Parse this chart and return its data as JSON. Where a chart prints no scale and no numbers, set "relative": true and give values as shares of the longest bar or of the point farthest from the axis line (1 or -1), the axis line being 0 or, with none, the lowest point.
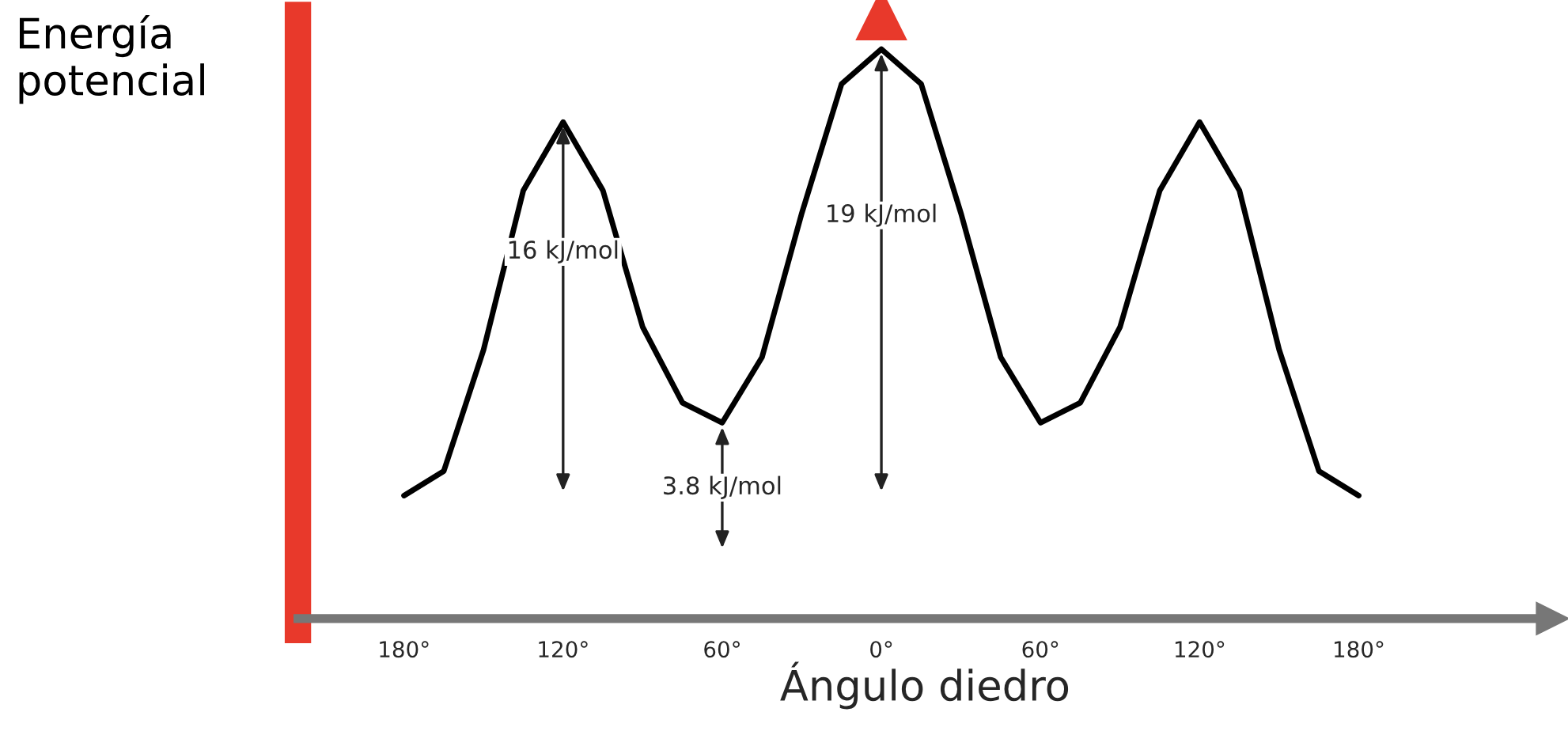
{
  "chart_data": {
    "type": "line",
    "relative": true,
    "xlabel": "Ángulo diedro",
    "ylabel": "Energía\npotencial",
    "xlim": [
      -220,
      253
    ],
    "xticks": [
      {
        "value": -180,
        "label": "180°"
      },
      {
        "value": -120,
        "label": "120°"
      },
      {
        "value": -60,
        "label": "60°"
      },
      {
        "value": 0,
        "label": "0°"
      },
      {
        "value": 60,
        "label": "60°"
      },
      {
        "value": 120,
        "label": "120°"
      },
      {
        "value": 180,
        "label": "180°"
      }
    ],
    "tick_labels": "x",
    "grid": false,
    "marker": "none",
    "line_style": "solid",
    "series": [
      {
        "color": "#000000",
        "x": [
          -180,
          -165,
          -150,
          -135,
          -120,
          -105,
          -90,
          -75,
          -60,
          -45,
          -30,
          -15,
          0,
          15,
          30,
          45,
          60,
          75,
          90,
          105,
          120,
          135,
          150,
          165,
          180
        ],
        "values": [
          0.216,
          0.259,
          0.472,
          0.752,
          0.872,
          0.752,
          0.512,
          0.379,
          0.344,
          0.459,
          0.712,
          0.939,
          1,
          0.939,
          0.712,
          0.459,
          0.344,
          0.379,
          0.512,
          0.752,
          0.872,
          0.752,
          0.472,
          0.259,
          0.216
        ]
      }
    ],
    "annotations": [
      "16 kJ/mol",
      "3.8 kJ/mol",
      "19 kJ/mol"
    ]
  }
}
